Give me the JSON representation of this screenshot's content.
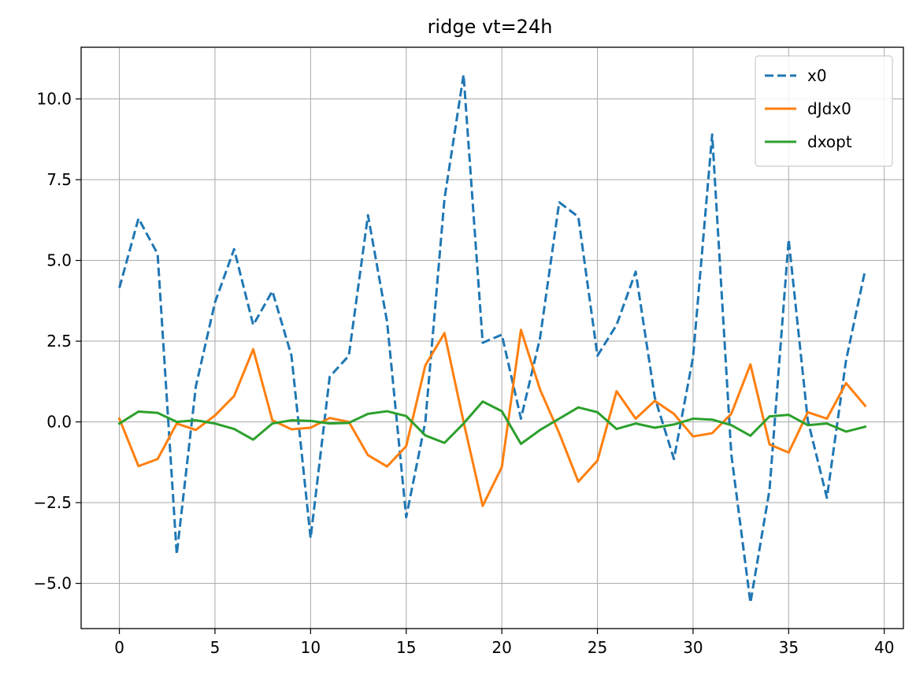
{
  "chart_data": {
    "type": "line",
    "title": "ridge vt=24h",
    "xlabel": "",
    "ylabel": "",
    "xlim": [
      -2,
      41
    ],
    "ylim": [
      -6.4,
      11.6
    ],
    "x_ticks": [
      0,
      5,
      10,
      15,
      20,
      25,
      30,
      35,
      40
    ],
    "y_ticks": [
      -5.0,
      -2.5,
      0.0,
      2.5,
      5.0,
      7.5,
      10.0
    ],
    "y_tick_labels": [
      "−5.0",
      "−2.5",
      "0.0",
      "2.5",
      "5.0",
      "7.5",
      "10.0"
    ],
    "grid": true,
    "legend_position": "top-right",
    "x": [
      0,
      1,
      2,
      3,
      4,
      5,
      6,
      7,
      8,
      9,
      10,
      11,
      12,
      13,
      14,
      15,
      16,
      17,
      18,
      19,
      20,
      21,
      22,
      23,
      24,
      25,
      26,
      27,
      28,
      29,
      30,
      31,
      32,
      33,
      34,
      35,
      36,
      37,
      38,
      39
    ],
    "series": [
      {
        "name": "x0",
        "color": "#1f77b4",
        "dash": true,
        "values": [
          4.15,
          6.3,
          5.2,
          -4.1,
          1.1,
          3.7,
          5.35,
          3.0,
          4.05,
          2.05,
          -3.6,
          1.4,
          2.05,
          6.4,
          3.1,
          -2.95,
          0.0,
          6.9,
          10.75,
          2.45,
          2.7,
          0.1,
          2.6,
          6.8,
          6.35,
          2.05,
          3.0,
          4.65,
          0.75,
          -1.15,
          2.0,
          8.9,
          -1.0,
          -5.6,
          -2.1,
          5.65,
          0.05,
          -2.35,
          1.9,
          4.7
        ]
      },
      {
        "name": "dJdx0",
        "color": "#ff7f0e",
        "dash": false,
        "values": [
          0.1,
          -1.37,
          -1.15,
          -0.05,
          -0.25,
          0.2,
          0.8,
          2.25,
          0.05,
          -0.23,
          -0.18,
          0.12,
          0.0,
          -1.03,
          -1.38,
          -0.75,
          1.75,
          2.75,
          0.0,
          -2.6,
          -1.4,
          2.85,
          1.0,
          -0.35,
          -1.85,
          -1.2,
          0.95,
          0.1,
          0.65,
          0.25,
          -0.45,
          -0.35,
          0.25,
          1.78,
          -0.7,
          -0.95,
          0.3,
          0.1,
          1.2,
          0.5
        ]
      },
      {
        "name": "dxopt",
        "color": "#2ca02c",
        "dash": false,
        "values": [
          -0.05,
          0.32,
          0.28,
          0.0,
          0.05,
          -0.05,
          -0.22,
          -0.55,
          -0.05,
          0.05,
          0.03,
          -0.05,
          -0.03,
          0.25,
          0.33,
          0.18,
          -0.42,
          -0.65,
          -0.05,
          0.63,
          0.33,
          -0.68,
          -0.25,
          0.1,
          0.45,
          0.3,
          -0.22,
          -0.05,
          -0.18,
          -0.08,
          0.1,
          0.07,
          -0.1,
          -0.43,
          0.17,
          0.22,
          -0.1,
          -0.05,
          -0.3,
          -0.15
        ]
      }
    ]
  }
}
